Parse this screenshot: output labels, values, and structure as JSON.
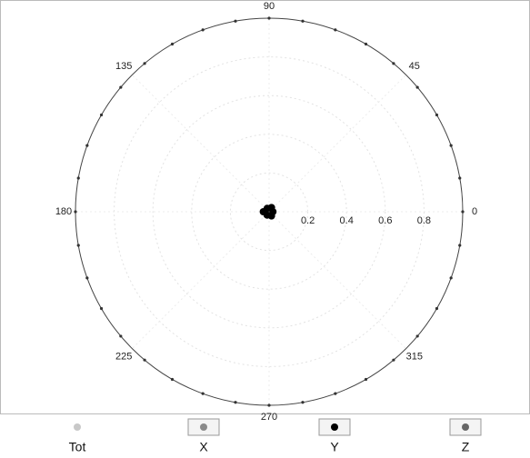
{
  "chart_data": {
    "type": "polar",
    "thetaticks": [
      0,
      45,
      90,
      135,
      180,
      225,
      270,
      315
    ],
    "rlim": [
      0,
      1
    ],
    "rticks": [
      0.2,
      0.4,
      0.6,
      0.8
    ],
    "grid": true,
    "series": [
      {
        "name": "Tot",
        "color": "#c8c8c8",
        "angles": [],
        "values": []
      },
      {
        "name": "X",
        "color": "#8a8a8a",
        "angles": [],
        "values": []
      },
      {
        "name": "Y",
        "color": "#000000",
        "angles": [
          0,
          60,
          120,
          180,
          240,
          300
        ],
        "values": [
          0.02,
          0.025,
          0.02,
          0.03,
          0.02,
          0.025
        ]
      },
      {
        "name": "Z",
        "color": "#666666",
        "angles": [],
        "values": []
      }
    ]
  }
}
